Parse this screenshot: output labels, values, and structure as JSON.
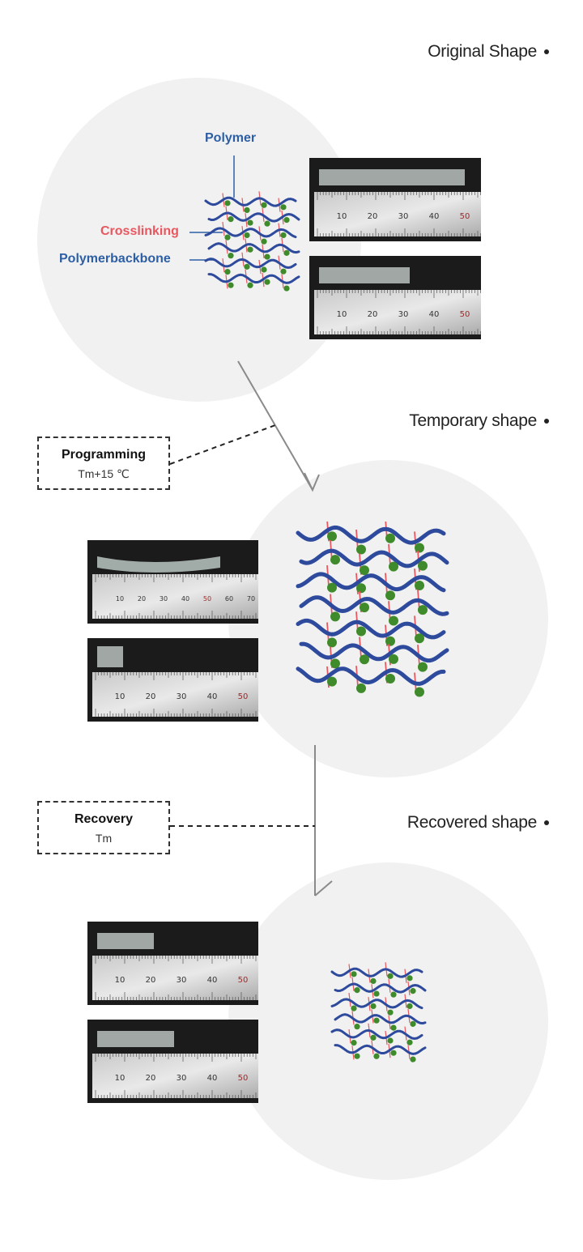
{
  "stages": {
    "original": {
      "title": "Original Shape"
    },
    "temporary": {
      "title": "Temporary shape"
    },
    "recovered": {
      "title": "Recovered shape"
    }
  },
  "molecule_labels": {
    "polymer": "Polymer",
    "crosslinking": "Crosslinking",
    "backbone": "Polymerbackbone"
  },
  "processes": {
    "programming": {
      "title": "Programming",
      "condition": "Tm+15 ℃"
    },
    "recovery": {
      "title": "Recovery",
      "condition": "Tm"
    }
  },
  "ruler_ticks": {
    "standard": [
      "10",
      "20",
      "30",
      "40",
      "50"
    ],
    "long": [
      "10",
      "20",
      "30",
      "40",
      "50",
      "60",
      "70"
    ]
  },
  "colors": {
    "circle": "#f1f1f1",
    "polymer_blue": "#2e4a9c",
    "crosslink_red": "#e8575f",
    "node_green": "#3f8a2a",
    "label_blue": "#2d5fa6",
    "label_red": "#e8575f"
  }
}
